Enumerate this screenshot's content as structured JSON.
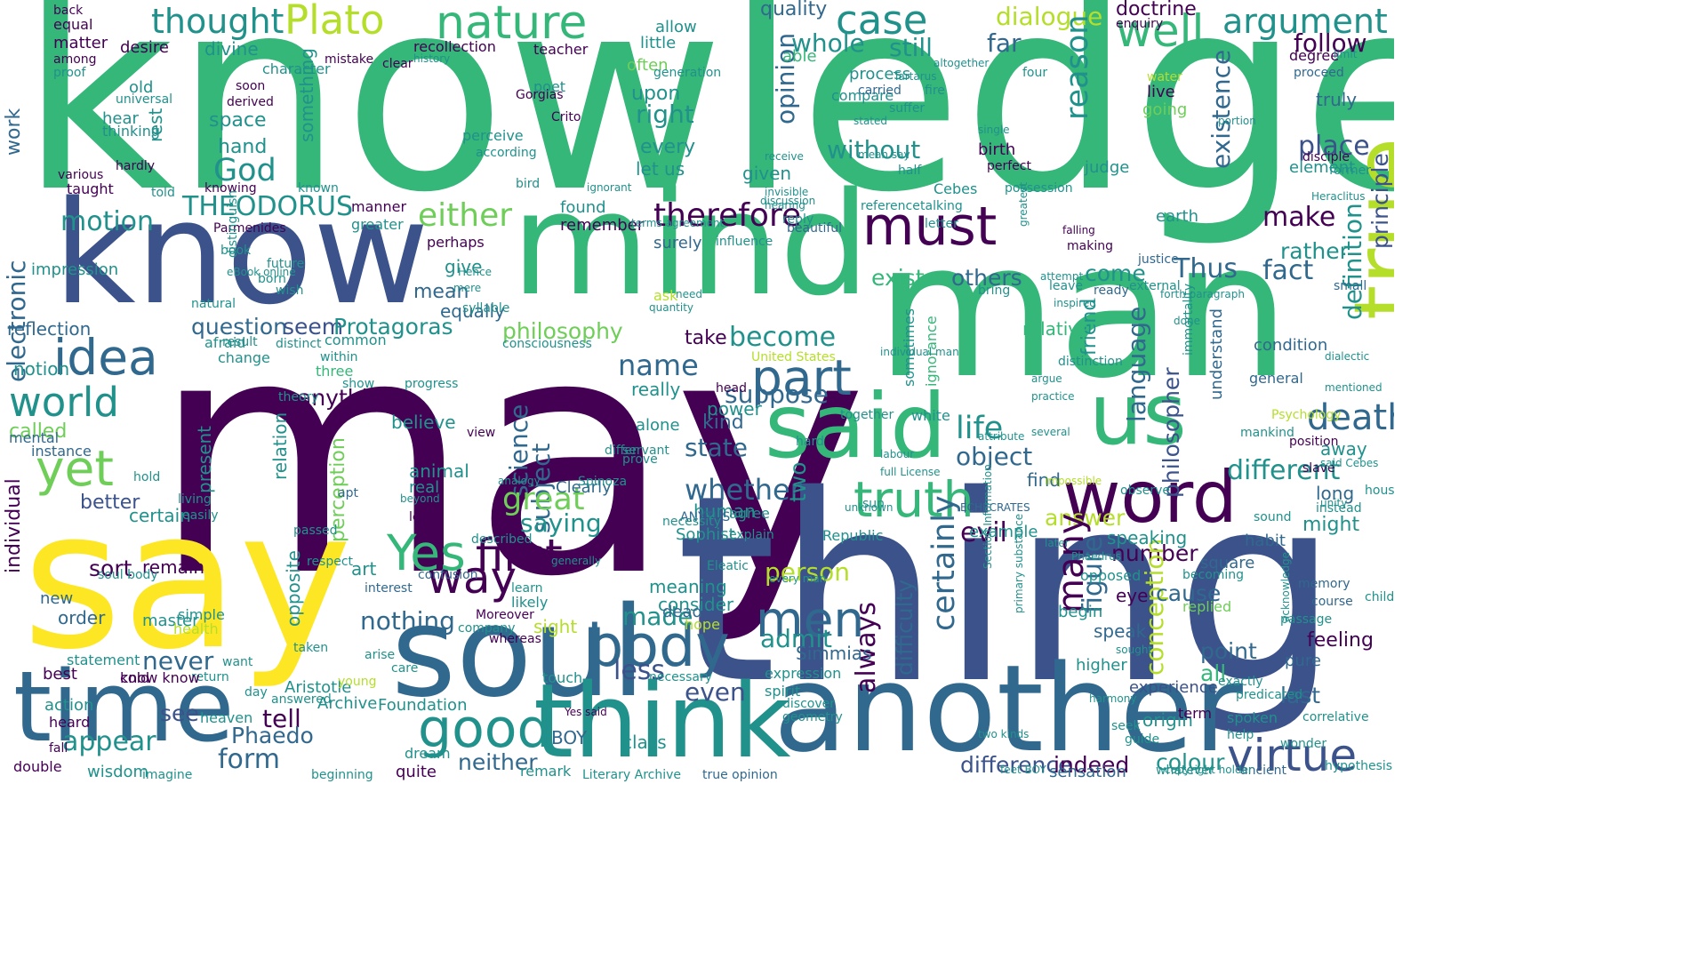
{
  "palette": {
    "purple": "#440154",
    "indigo": "#3b528b",
    "blue": "#31688e",
    "teal": "#21918c",
    "green": "#35b779",
    "lightgreen": "#6ece58",
    "lime": "#b5de2b",
    "yellow": "#fde725"
  },
  "words": {
    "knowledge": "knowledge",
    "may": "may",
    "thing": "thing",
    "say": "say",
    "man": "man",
    "know": "know",
    "mind": "mind",
    "soul": "soul",
    "another": "another",
    "think": "think",
    "time": "time",
    "good": "good",
    "true": "true",
    "sense": "sense",
    "said": "said",
    "us": "us",
    "word": "word",
    "truth": "truth",
    "must": "must",
    "body": "body",
    "men": "men",
    "idea": "idea",
    "world": "world",
    "yet": "yet",
    "way": "way",
    "Yes": "Yes",
    "first": "first",
    "part": "part",
    "virtue": "virtue",
    "death": "death",
    "nature": "nature",
    "Plato": "Plato",
    "thought": "thought",
    "case": "case",
    "well": "well",
    "argument": "argument",
    "dialogue": "dialogue",
    "follow": "follow",
    "therefore": "therefore",
    "either": "either",
    "THEODORUS": "THEODORUS",
    "motion": "motion",
    "God": "God",
    "make": "make",
    "Thus": "Thus",
    "fact": "fact",
    "place": "place",
    "rather": "rather",
    "existence": "existence",
    "reason": "reason",
    "opinion": "opinion",
    "without": "without",
    "become": "become",
    "name": "name",
    "suppose": "suppose",
    "anything": "anything",
    "question": "question",
    "seem": "seem",
    "Protagoras": "Protagoras",
    "philosophy": "philosophy",
    "science": "science",
    "subject": "subject",
    "great": "great",
    "saying": "saying",
    "whether": "whether",
    "state": "state",
    "kind": "kind",
    "life": "life",
    "object": "object",
    "evil": "evil",
    "answer": "answer",
    "number": "number",
    "different": "different",
    "language": "language",
    "philosopher": "philosopher",
    "conception": "conception",
    "definition": "definition",
    "principle": "principle",
    "always": "always",
    "certainly": "certainly",
    "many": "many",
    "figure": "figure",
    "difficulty": "difficulty",
    "person": "person",
    "admit": "admit",
    "made": "made",
    "nothing": "nothing",
    "never": "never",
    "form": "form",
    "tell": "tell",
    "see": "see",
    "appear": "appear",
    "neither": "neither",
    "Phaedo": "Phaedo",
    "less": "less",
    "even": "even",
    "difference": "difference",
    "indeed": "indeed",
    "colour": "colour",
    "sensation": "sensation",
    "experience": "experience",
    "feeling": "feeling",
    "point": "point",
    "cause": "cause",
    "last": "last",
    "all": "all",
    "still": "still",
    "whole": "whole",
    "far": "far",
    "quality": "quality",
    "doctrine": "doctrine",
    "electronic": "electronic",
    "work": "work",
    "individual": "individual",
    "reflection": "reflection",
    "notion": "notion",
    "called": "called",
    "better": "better",
    "sort": "sort",
    "remain": "remain",
    "best": "best",
    "action": "action",
    "wisdom": "wisdom",
    "old": "old",
    "hear": "hear",
    "space": "space",
    "hand": "hand",
    "right": "right",
    "every": "every",
    "upon": "upon",
    "let us": "let us",
    "something": "something",
    "rest": "rest",
    "given": "given",
    "exist": "exist",
    "others": "others",
    "come": "come",
    "friend": "friend",
    "relative": "relative",
    "present": "present",
    "relation": "relation",
    "perception": "perception",
    "animal": "animal",
    "real": "real",
    "two": "two",
    "found": "found",
    "remember": "remember",
    "give": "give",
    "mean": "mean",
    "equally": "equally",
    "really": "really",
    "take": "take",
    "believe": "believe",
    "certain": "certain",
    "human": "human",
    "Sophist": "Sophist",
    "example": "example",
    "might": "might",
    "opposite": "opposite",
    "meaning": "meaning",
    "consider": "consider",
    "Archive": "Archive",
    "Foundation": "Foundation",
    "class": "class",
    "origin": "origin",
    "speaking": "speaking",
    "Simmias": "Simmias",
    "Aristotle": "Aristotle",
    "far_": "far",
    "United States": "United States",
    "power": "power",
    "alone": "alone",
    "Clearly": "Clearly",
    "find": "find",
    "speak": "speak",
    "higher": "higher",
    "begin": "begin",
    "eye": "eye",
    "opposed": "opposed",
    "moment": "moment",
    "judge": "judge",
    "earth": "earth",
    "element": "element",
    "going": "going",
    "truly": "truly",
    "long": "long",
    "away": "away",
    "square": "square",
    "habit": "habit",
    "understand": "understand",
    "condition": "condition",
    "general": "general",
    "memory": "memory",
    "course": "course",
    "dead": "dead",
    "hope": "hope",
    "BOY": "BOY",
    "surely": "surely",
    "ANYTUS": "ANYTUS",
    "ignorance": "ignorance",
    "sometimes": "sometimes",
    "small": "small",
    "white": "white",
    "sight": "sight",
    "allow": "allow",
    "teacher": "teacher",
    "divine": "divine",
    "desire": "desire",
    "matter": "matter",
    "thinking": "thinking",
    "recollection": "recollection",
    "character": "character",
    "little": "little",
    "often": "often",
    "poet": "poet",
    "able": "able",
    "process": "process",
    "compare": "compare",
    "birth": "birth",
    "perfect": "perfect",
    "live": "live",
    "water": "water",
    "proceed": "proceed",
    "degree": "degree",
    "statement": "statement",
    "master": "master",
    "order": "order",
    "new": "new",
    "simple": "simple",
    "health": "health",
    "young": "young",
    "conscious": "conscious",
    "mental": "mental",
    "instance": "instance",
    "three": "three",
    "common": "common",
    "change": "change",
    "Athenian": "Athenian",
    "Republic": "Republic",
    "agree": "agree",
    "possession": "possession",
    "beautiful": "beautiful",
    "impression": "impression",
    "taught": "taught",
    "various": "various",
    "Parmenides": "Parmenides",
    "manner": "manner",
    "greater": "greater",
    "seen": "seen",
    "ask": "ask",
    "belief": "belief",
    "Psychology": "Psychology",
    "ready": "ready",
    "true opinion": "true opinion",
    "Literary Archive": "Literary Archive",
    "interest": "interest",
    "art": "art",
    "accordingly": "accordingly",
    "confusion": "confusion",
    "pure": "pure",
    "cold": "cold",
    "heard": "heard",
    "quite": "quite",
    "dream": "dream",
    "remark": "remark",
    "spirit": "spirit",
    "expression": "expression",
    "term": "term",
    "justice": "justice",
    "reply": "reply",
    "distinct": "distinct",
    "observe": "observe",
    "position": "position",
    "slave": "slave",
    "replied": "replied",
    "becoming": "becoming",
    "twice": "twice",
    "music": "music",
    "Cebes": "Cebes",
    "talking": "talking",
    "already": "already",
    "particular": "particular",
    "combination": "combination",
    "public domain": "public domain",
    "ground": "ground",
    "probably": "probably",
    "help": "help",
    "spoken": "spoken",
    "ancient": "ancient",
    "Heraclitus": "Heraclitus",
    "enquiry": "enquiry",
    "universal": "universal",
    "around": "around",
    "proof": "proof",
    "among": "among",
    "back": "back",
    "equal": "equal",
    "soon": "soon",
    "derived": "derived",
    "noble": "noble",
    "knowing": "knowing",
    "told": "told",
    "hardly": "hardly",
    "known": "known",
    "perceive": "perceive",
    "according": "according",
    "discussion": "discussion",
    "particle": "particle",
    "perhaps": "perhaps",
    "future": "future",
    "born": "born",
    "wish": "wish",
    "book": "book",
    "natural": "natural",
    "within": "within",
    "show": "show",
    "theory": "theory",
    "progress": "progress",
    "nowhere": "nowhere",
    "lie": "lie",
    "servant": "servant",
    "apt": "apt",
    "beyond": "beyond",
    "living": "living",
    "easily": "easily",
    "rise": "rise",
    "respect": "respect",
    "passed": "passed",
    "described": "described",
    "generally": "generally",
    "likely": "likely",
    "company": "company",
    "learn": "learn",
    "touch": "touch",
    "second": "second",
    "necessary": "necessary",
    "necessity": "necessity",
    "vice": "vice",
    "head": "head",
    "ill": "ill",
    "view": "view",
    "consciousness": "consciousness",
    "distinguish": "distinguish",
    "afraid": "afraid",
    "result": "result",
    "imagine": "imagine",
    "double": "double",
    "fall": "fall",
    "connected": "connected",
    "beginning": "beginning",
    "answered": "answered",
    "heaven": "heaven",
    "want": "want",
    "return": "return",
    "day": "day",
    "taken": "taken",
    "care": "care",
    "bear": "bear",
    "arise": "arise",
    "whereas": "whereas",
    "Moreover": "Moreover",
    "conceived": "conceived",
    "camel": "camel",
    "geometry": "geometry",
    "discover": "discover",
    "fixed": "fixed",
    "Nay": "Nay",
    "leave": "leave",
    "learned": "learned",
    "specie": "specie",
    "making": "making",
    "falling": "falling",
    "attempt": "attempt",
    "mode": "mode",
    "external": "external",
    "greatest": "greatest",
    "aware": "aware",
    "disciple": "disciple",
    "measure": "measure",
    "former": "former",
    "instead": "instead",
    "whatever": "whatever",
    "sound": "sound",
    "house": "house",
    "mentioned": "mentioned",
    "unity": "unity",
    "aspect": "aspect",
    "wonder": "wonder",
    "correlative": "correlative",
    "acknowledge": "acknowledge",
    "passage": "passage",
    "guide": "guide",
    "seek": "seek",
    "exactly": "exactly",
    "predicated": "predicated",
    "sophist": "sophist",
    "Gorgias": "Gorgias",
    "Crito": "Crito",
    "generation": "generation",
    "strange": "strange",
    "infinite": "infinite",
    "clear": "clear",
    "mistake": "mistake",
    "divided": "divided",
    "altogether": "altogether",
    "Tartarus": "Tartarus",
    "carried": "carried",
    "fire": "fire",
    "suffer": "suffer",
    "statesman": "statesman",
    "grant": "grant",
    "half": "half",
    "mean say": "mean say",
    "Apology": "Apology",
    "pleasure": "pleasure",
    "stated": "stated",
    "receive": "receive",
    "invisible": "invisible",
    "hearing": "hearing",
    "letter": "letter",
    "reference": "reference",
    "influence": "influence",
    "terms agreement": "terms agreement",
    "syllable": "syllable",
    "fancy": "fancy",
    "allusion": "allusion",
    "Hence": "Hence",
    "mere": "mere",
    "need": "need",
    "quantity": "quantity",
    "later": "later",
    "unknown": "unknown",
    "path": "path",
    "hold": "hold",
    "reflect": "reflect",
    "attain": "attain",
    "element_": "element",
    "explain": "explain",
    "tongue": "tongue",
    "done": "done",
    "bring": "bring",
    "secondly": "secondly",
    "prove": "prove",
    "differ": "differ",
    "bird": "bird",
    "together": "together",
    "Terpsion": "Terpsion",
    "Eleatic": "Eleatic",
    "ECHECRATES": "ECHECRATES",
    "practice": "practice",
    "argue": "argue",
    "labour": "labour",
    "attribute": "attribute",
    "hard": "hard",
    "sun": "sun",
    "River": "river",
    "individual man": "individual man",
    "prior": "prior",
    "distinction": "distinction",
    "immortality": "immortality",
    "impossible": "impossible",
    "several": "several",
    "inspired": "inspired",
    "single": "single",
    "history": "history",
    "portion": "portion",
    "sensible": "sensible",
    "limit": "limit",
    "sought": "sought",
    "harmony": "harmony",
    "dialectic": "dialectic",
    "Phaedrus": "Phaedrus",
    "mortal": "mortal",
    "animals": "animals",
    "Section Information": "Section Information",
    "full License": "full License",
    "copy": "copy",
    "copyright holder": "copyright holder",
    "four": "four",
    "Spinoza": "Spinoza",
    "analogy": "analogy",
    "primary substance": "primary substance",
    "ignorant": "ignorant",
    "face": "face",
    "eBook online": "eBook online",
    "reader": "reader",
    "mankind": "mankind",
    "children": "children",
    "hypothesis": "hypothesis",
    "Yes said": "Yes said",
    "said Cebes": "said Cebes",
    "every man": "every man",
    "Nay say": "Nay say",
    "forth paragraph": "forth paragraph",
    "feet BOY": "feet BOY",
    "two kinds": "two kinds",
    "know know": "know know",
    "soul body": "soul body",
    "let": "let"
  }
}
